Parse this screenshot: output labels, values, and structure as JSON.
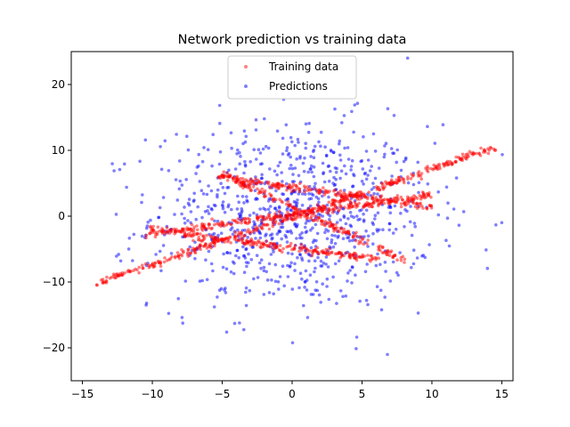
{
  "chart_data": {
    "type": "scatter",
    "title": "Network prediction vs training data",
    "xlabel": "",
    "ylabel": "",
    "xlim": [
      -15.8,
      15.8
    ],
    "ylim": [
      -25,
      25
    ],
    "xticks": [
      -15,
      -10,
      -5,
      0,
      5,
      10,
      15
    ],
    "yticks": [
      -20,
      -10,
      0,
      10,
      20
    ],
    "x_tick_labels": [
      "−15",
      "−10",
      "−5",
      "0",
      "5",
      "10",
      "15"
    ],
    "y_tick_labels": [
      "−20",
      "−10",
      "0",
      "10",
      "20"
    ],
    "grid": false,
    "legend_position": "top-center",
    "series": [
      {
        "name": "Training data",
        "color": "#ff0000",
        "alpha": 0.5,
        "marker": "circle",
        "bands": [
          {
            "x_start": -14,
            "x_end": 14.5,
            "y_start": -10.2,
            "y_end": 10.4
          },
          {
            "x_start": -5.5,
            "x_end": 10.2,
            "y_start": 6.0,
            "y_end": 1.4
          },
          {
            "x_start": -5.2,
            "x_end": 8.2,
            "y_start": 6.5,
            "y_end": -6.8
          },
          {
            "x_start": -10.5,
            "x_end": 9.8,
            "y_start": -2.8,
            "y_end": 3.2
          },
          {
            "x_start": -10.2,
            "x_end": 6.2,
            "y_start": -2.0,
            "y_end": -6.6
          }
        ]
      },
      {
        "name": "Predictions",
        "color": "#0000ff",
        "alpha": 0.5,
        "marker": "circle",
        "distribution": {
          "x_mean": 0,
          "x_sd": 5.0,
          "y_mean": 0,
          "y_sd": 7.0,
          "count": 900
        }
      }
    ]
  }
}
